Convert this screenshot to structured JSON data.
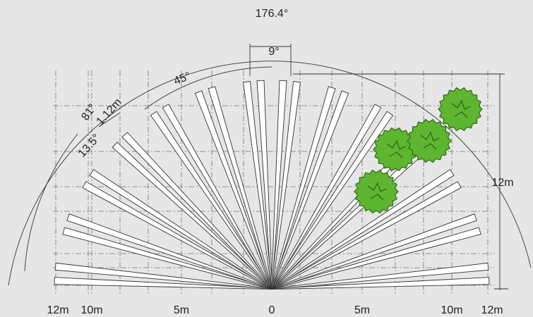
{
  "angles": {
    "total": "176.4°",
    "beam": "9°",
    "sector": "45°",
    "wide": "81°",
    "step": "13.5°"
  },
  "dimensions": {
    "beam_width": "1.12m",
    "range": "12m"
  },
  "axis_labels": [
    "12m",
    "10m",
    "5m",
    "0",
    "5m",
    "10m",
    "12m"
  ]
}
